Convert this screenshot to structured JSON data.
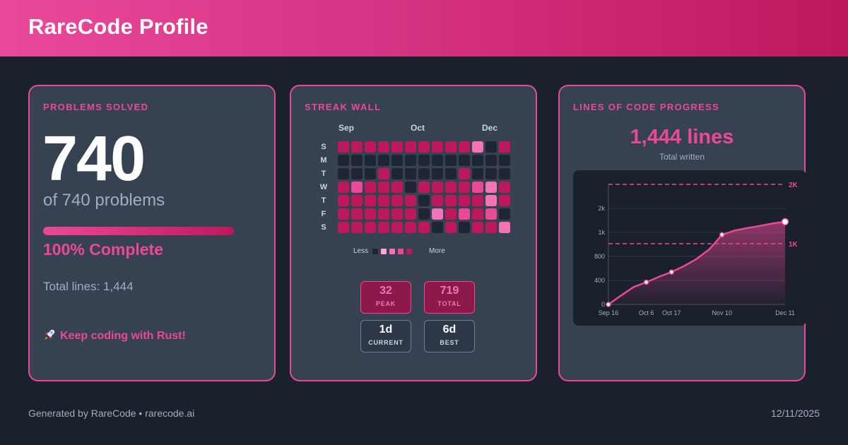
{
  "header": {
    "title": "RareCode Profile"
  },
  "problems": {
    "title": "PROBLEMS SOLVED",
    "count": "740",
    "of_text": "of 740 problems",
    "progress_fraction": 1.0,
    "complete_text": "100% Complete",
    "total_lines": "Total lines: 1,444",
    "cta": "Keep coding with Rust!",
    "cta_icon": "rocket-icon"
  },
  "streak": {
    "title": "STREAK WALL",
    "months": [
      "Sep",
      "Oct",
      "Dec"
    ],
    "days": [
      "S",
      "M",
      "T",
      "W",
      "T",
      "F",
      "S"
    ],
    "levels": [
      [
        4,
        4,
        4,
        4,
        4,
        4,
        4,
        4,
        4,
        4,
        2,
        0,
        4
      ],
      [
        0,
        0,
        0,
        0,
        0,
        0,
        0,
        0,
        0,
        0,
        0,
        0,
        0
      ],
      [
        0,
        0,
        0,
        4,
        0,
        0,
        0,
        0,
        0,
        4,
        0,
        0,
        0
      ],
      [
        4,
        3,
        4,
        4,
        4,
        0,
        4,
        4,
        4,
        4,
        3,
        2,
        4
      ],
      [
        4,
        4,
        4,
        4,
        4,
        4,
        0,
        4,
        4,
        4,
        4,
        2,
        4
      ],
      [
        4,
        4,
        4,
        4,
        4,
        4,
        0,
        2,
        4,
        3,
        4,
        3,
        0
      ],
      [
        4,
        4,
        4,
        4,
        4,
        4,
        4,
        0,
        4,
        0,
        4,
        4,
        2
      ]
    ],
    "level_colors": [
      "#1e2533",
      "#f9a8d4",
      "#f472b6",
      "#ec4899",
      "#be185d"
    ],
    "legend_less": "Less",
    "legend_more": "More",
    "stats": {
      "peak_value": "32",
      "peak_label": "PEAK",
      "total_value": "719",
      "total_label": "TOTAL",
      "current_value": "1d",
      "current_label": "CURRENT",
      "best_value": "6d",
      "best_label": "BEST"
    }
  },
  "loc": {
    "title": "LINES OF CODE PROGRESS",
    "big": "1,444 lines",
    "sub": "Total written"
  },
  "chart_data": {
    "type": "area",
    "x": [
      "Sep 16",
      "Sep 23",
      "Sep 30",
      "Oct 6",
      "Oct 12",
      "Oct 17",
      "Oct 23",
      "Oct 29",
      "Nov 4",
      "Nov 10",
      "Nov 16",
      "Nov 22",
      "Nov 28",
      "Dec 4",
      "Dec 11"
    ],
    "y": [
      0,
      150,
      290,
      370,
      460,
      540,
      640,
      760,
      860,
      980,
      1080,
      1180,
      1270,
      1370,
      1444
    ],
    "marked_points": [
      0,
      3,
      5,
      9,
      14
    ],
    "x_ticks": [
      "Sep 16",
      "Oct 6",
      "Oct 17",
      "Nov 10",
      "Dec 11"
    ],
    "y_ticks": [
      "0",
      "400",
      "800",
      "1k",
      "2k"
    ],
    "y_tick_values": [
      0,
      400,
      800,
      1000,
      2000
    ],
    "reference_lines": [
      {
        "label": "2K",
        "value": 2000
      },
      {
        "label": "1K",
        "value": 1000
      }
    ],
    "line_color": "#ec4899",
    "grid": true
  },
  "footer": {
    "left": "Generated by RareCode • rarecode.ai",
    "right": "12/11/2025"
  }
}
